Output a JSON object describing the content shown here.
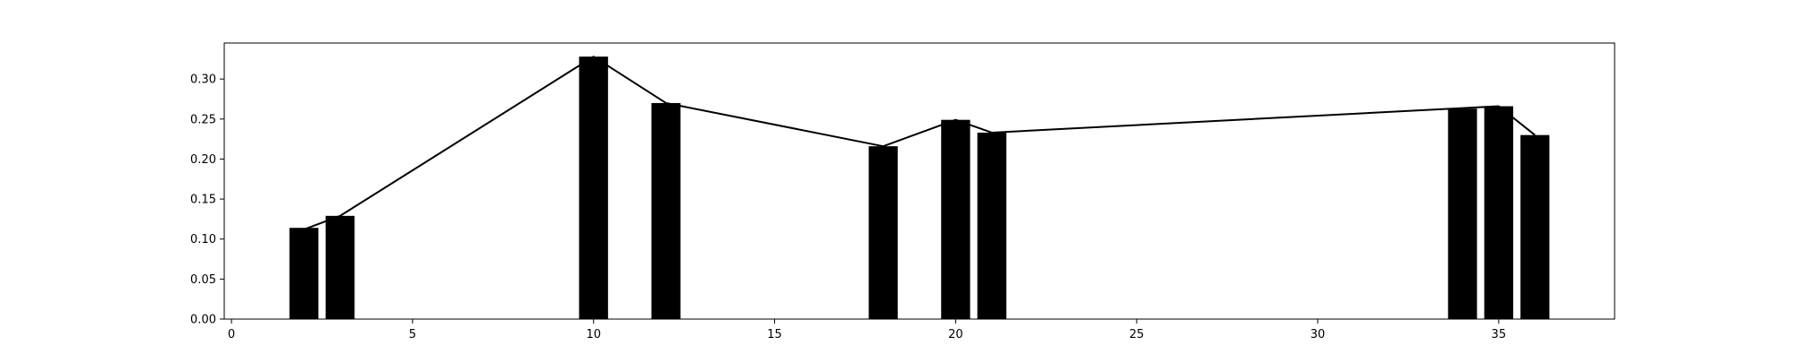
{
  "chart_data": {
    "type": "bar",
    "title": "",
    "xlabel": "",
    "ylabel": "",
    "xlim": [
      -0.2,
      38.2
    ],
    "ylim": [
      0.0,
      0.345
    ],
    "grid": false,
    "x_ticks": [
      0,
      5,
      10,
      15,
      20,
      25,
      30,
      35
    ],
    "x_tick_labels": [
      "0",
      "5",
      "10",
      "15",
      "20",
      "25",
      "30",
      "35"
    ],
    "y_ticks": [
      0.0,
      0.05,
      0.1,
      0.15,
      0.2,
      0.25,
      0.3
    ],
    "y_tick_labels": [
      "0.00",
      "0.05",
      "0.10",
      "0.15",
      "0.20",
      "0.25",
      "0.30"
    ],
    "bar_width": 0.8,
    "bar_color": "#000000",
    "line_color": "#000000",
    "series": [
      {
        "x": [
          2,
          3,
          10,
          12,
          18,
          20,
          21,
          34,
          35,
          36
        ],
        "values": [
          0.114,
          0.129,
          0.328,
          0.27,
          0.216,
          0.249,
          0.233,
          0.263,
          0.266,
          0.23
        ]
      }
    ],
    "line": {
      "x": [
        2,
        3,
        10,
        12,
        18,
        20,
        21,
        35,
        36
      ],
      "values": [
        0.112,
        0.129,
        0.328,
        0.27,
        0.216,
        0.249,
        0.233,
        0.266,
        0.23
      ]
    }
  }
}
